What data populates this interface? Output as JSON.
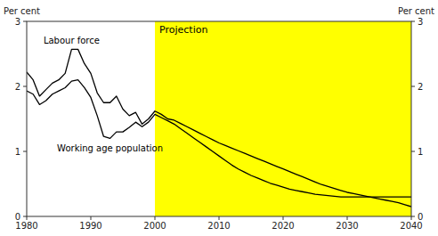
{
  "chart_data": {
    "type": "line",
    "ylabel": "Per cent",
    "y2label": "Per cent",
    "projection": {
      "start": 2000,
      "label": "Projection",
      "color": "#ffff00"
    },
    "x": [
      1980,
      1981,
      1982,
      1983,
      1984,
      1985,
      1986,
      1987,
      1988,
      1989,
      1990,
      1991,
      1992,
      1993,
      1994,
      1995,
      1996,
      1997,
      1998,
      1999,
      2000,
      2001,
      2002,
      2003,
      2004,
      2005,
      2006,
      2007,
      2008,
      2009,
      2010,
      2011,
      2012,
      2013,
      2014,
      2015,
      2016,
      2017,
      2018,
      2019,
      2020,
      2021,
      2022,
      2023,
      2024,
      2025,
      2026,
      2027,
      2028,
      2029,
      2030,
      2031,
      2032,
      2033,
      2034,
      2035,
      2036,
      2037,
      2038,
      2039,
      2040
    ],
    "series": [
      {
        "name": "Labour force",
        "color": "#000000",
        "values": [
          2.22,
          2.1,
          1.85,
          1.95,
          2.05,
          2.1,
          2.2,
          2.57,
          2.57,
          2.35,
          2.2,
          1.9,
          1.75,
          1.75,
          1.85,
          1.65,
          1.55,
          1.6,
          1.42,
          1.5,
          1.62,
          1.57,
          1.5,
          1.48,
          1.43,
          1.38,
          1.33,
          1.28,
          1.23,
          1.18,
          1.13,
          1.09,
          1.05,
          1.01,
          0.97,
          0.93,
          0.89,
          0.85,
          0.81,
          0.77,
          0.73,
          0.69,
          0.65,
          0.61,
          0.57,
          0.53,
          0.49,
          0.46,
          0.43,
          0.4,
          0.37,
          0.35,
          0.33,
          0.31,
          0.29,
          0.27,
          0.25,
          0.23,
          0.21,
          0.18,
          0.15
        ]
      },
      {
        "name": "Working age population",
        "color": "#000000",
        "values": [
          1.93,
          1.88,
          1.72,
          1.78,
          1.88,
          1.93,
          1.98,
          2.08,
          2.1,
          1.98,
          1.83,
          1.55,
          1.23,
          1.2,
          1.3,
          1.3,
          1.37,
          1.45,
          1.38,
          1.45,
          1.57,
          1.52,
          1.47,
          1.42,
          1.35,
          1.28,
          1.21,
          1.14,
          1.07,
          1.0,
          0.93,
          0.86,
          0.79,
          0.73,
          0.68,
          0.63,
          0.59,
          0.55,
          0.51,
          0.48,
          0.45,
          0.42,
          0.4,
          0.38,
          0.36,
          0.34,
          0.33,
          0.32,
          0.31,
          0.3,
          0.3,
          0.3,
          0.3,
          0.3,
          0.3,
          0.3,
          0.3,
          0.3,
          0.3,
          0.3,
          0.3
        ]
      }
    ],
    "xlim": [
      1980,
      2040
    ],
    "ylim": [
      0,
      3
    ],
    "xticks": [
      1980,
      1990,
      2000,
      2010,
      2020,
      2030,
      2040
    ],
    "yticks": [
      0,
      1,
      2,
      3
    ],
    "y2lim": [
      0,
      3
    ],
    "y2ticks": [
      0,
      1,
      2,
      3
    ]
  }
}
